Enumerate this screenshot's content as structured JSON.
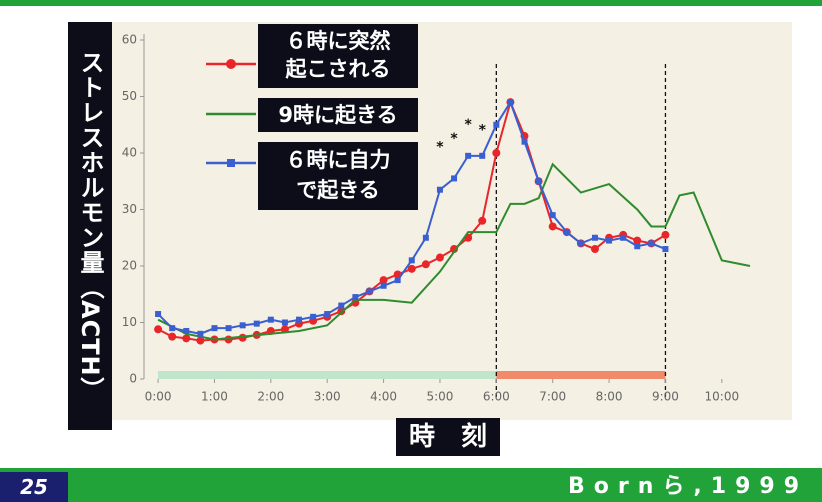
{
  "chart_data": {
    "type": "line",
    "y_axis_label": "ストレスホルモン量（ACTH）",
    "x_axis_label": "時　刻",
    "xlim": [
      -0.25,
      10.5
    ],
    "ylim": [
      0,
      60
    ],
    "xticks": [
      {
        "value": 0,
        "label": "0:00"
      },
      {
        "value": 1,
        "label": "1:00"
      },
      {
        "value": 2,
        "label": "2:00"
      },
      {
        "value": 3,
        "label": "3:00"
      },
      {
        "value": 4,
        "label": "4:00"
      },
      {
        "value": 5,
        "label": "5:00"
      },
      {
        "value": 6,
        "label": "6:00"
      },
      {
        "value": 7,
        "label": "7:00"
      },
      {
        "value": 8,
        "label": "8:00"
      },
      {
        "value": 9,
        "label": "9:00"
      },
      {
        "value": 10,
        "label": "10:00"
      }
    ],
    "yticks": [
      0,
      10,
      20,
      30,
      40,
      50,
      60
    ],
    "series": [
      {
        "name": "６時に突然\n起こされる",
        "color": "#e8262a",
        "marker": "circle",
        "x": [
          0,
          0.25,
          0.5,
          0.75,
          1,
          1.25,
          1.5,
          1.75,
          2,
          2.25,
          2.5,
          2.75,
          3,
          3.25,
          3.5,
          3.75,
          4,
          4.25,
          4.5,
          4.75,
          5,
          5.25,
          5.5,
          5.75,
          6,
          6.25,
          6.5,
          6.75,
          7,
          7.25,
          7.5,
          7.75,
          8,
          8.25,
          8.5,
          8.75,
          9
        ],
        "values": [
          8.8,
          7.5,
          7.2,
          6.8,
          7.0,
          7.0,
          7.3,
          7.8,
          8.5,
          8.8,
          9.8,
          10.3,
          11.0,
          12.0,
          13.5,
          15.5,
          17.5,
          18.5,
          19.5,
          20.3,
          21.5,
          23,
          25,
          28,
          40,
          49,
          43,
          35,
          27,
          26,
          24,
          23,
          25,
          25.5,
          24.5,
          24,
          25.5
        ]
      },
      {
        "name": "9時に起きる",
        "color": "#2e8b2e",
        "marker": "none",
        "x": [
          0,
          0.5,
          1,
          1.5,
          2,
          2.5,
          3,
          3.5,
          4,
          4.5,
          5,
          5.5,
          6,
          6.25,
          6.5,
          6.75,
          7,
          7.5,
          8,
          8.5,
          8.75,
          9,
          9.25,
          9.5,
          10,
          10.5
        ],
        "values": [
          10.5,
          8,
          7,
          7.5,
          8,
          8.5,
          9.5,
          14,
          14,
          13.5,
          19,
          26,
          26,
          31,
          31,
          32,
          38,
          33,
          34.5,
          30,
          27,
          27,
          32.5,
          33,
          21,
          20
        ]
      },
      {
        "name": "６時に自力\nで起きる",
        "color": "#3a5fd0",
        "marker": "square",
        "x": [
          0,
          0.25,
          0.5,
          0.75,
          1,
          1.25,
          1.5,
          1.75,
          2,
          2.25,
          2.5,
          2.75,
          3,
          3.25,
          3.5,
          3.75,
          4,
          4.25,
          4.5,
          4.75,
          5,
          5.25,
          5.5,
          5.75,
          6,
          6.25,
          6.5,
          6.75,
          7,
          7.25,
          7.5,
          7.75,
          8,
          8.25,
          8.5,
          8.75,
          9
        ],
        "values": [
          11.5,
          9,
          8.5,
          8,
          9,
          9,
          9.5,
          9.8,
          10.5,
          10,
          10.5,
          11,
          11.5,
          13,
          14.5,
          15.5,
          16.5,
          17.5,
          21,
          25,
          33.5,
          35.5,
          39.5,
          39.5,
          45,
          49,
          42,
          35,
          29,
          26,
          24,
          25,
          24.5,
          25,
          23.5,
          24,
          23
        ]
      }
    ],
    "annotations": [
      {
        "text": "*",
        "x": 5.0,
        "y": 41
      },
      {
        "text": "*",
        "x": 5.25,
        "y": 42.5
      },
      {
        "text": "*",
        "x": 5.5,
        "y": 45
      },
      {
        "text": "*",
        "x": 5.75,
        "y": 44
      }
    ]
  },
  "footer": {
    "page_number": "25",
    "citation": "Bornら,1999"
  }
}
